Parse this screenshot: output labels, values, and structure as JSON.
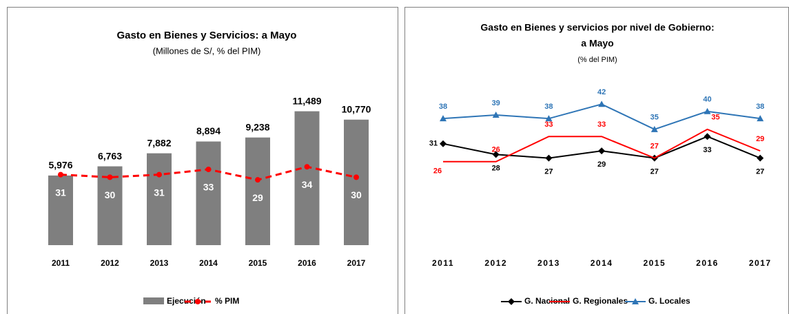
{
  "chart_data": [
    {
      "type": "bar-line",
      "title": "Gasto en Bienes y Servicios: a Mayo",
      "subtitle": "(Millones de S/, % del PIM)",
      "categories": [
        "2011",
        "2012",
        "2013",
        "2014",
        "2015",
        "2016",
        "2017"
      ],
      "series": [
        {
          "name": "Ejecución",
          "color": "#7f7f7f",
          "values": [
            5976,
            6763,
            7882,
            8894,
            9238,
            11489,
            10770
          ],
          "value_labels": [
            "5,976",
            "6,763",
            "7,882",
            "8,894",
            "9,238",
            "11,489",
            "10,770"
          ]
        },
        {
          "name": "% PIM",
          "color": "#ff0000",
          "axis": "y2",
          "values": [
            31,
            30,
            31,
            33,
            29,
            34,
            30
          ]
        }
      ],
      "ylim": [
        0,
        13000
      ],
      "y2lim": [
        4,
        62
      ],
      "legend": "bottom"
    },
    {
      "type": "line",
      "title": "Gasto en Bienes y servicios por nivel de Gobierno:",
      "subtitle": "a Mayo",
      "note": "(% del PIM)",
      "categories": [
        "2011",
        "2012",
        "2013",
        "2014",
        "2015",
        "2016",
        "2017"
      ],
      "series": [
        {
          "name": "G. Nacional",
          "color": "#000000",
          "marker": "diamond",
          "values": [
            31,
            28,
            27,
            29,
            27,
            33,
            27
          ]
        },
        {
          "name": "G. Regionales",
          "color": "#ff0000",
          "marker": "none",
          "values": [
            26,
            26,
            33,
            33,
            27,
            35,
            29
          ]
        },
        {
          "name": "G. Locales",
          "color": "#2e75b6",
          "marker": "triangle",
          "values": [
            38,
            39,
            38,
            42,
            35,
            40,
            38
          ]
        }
      ],
      "ylim": [
        2,
        48
      ],
      "legend": "bottom"
    }
  ]
}
